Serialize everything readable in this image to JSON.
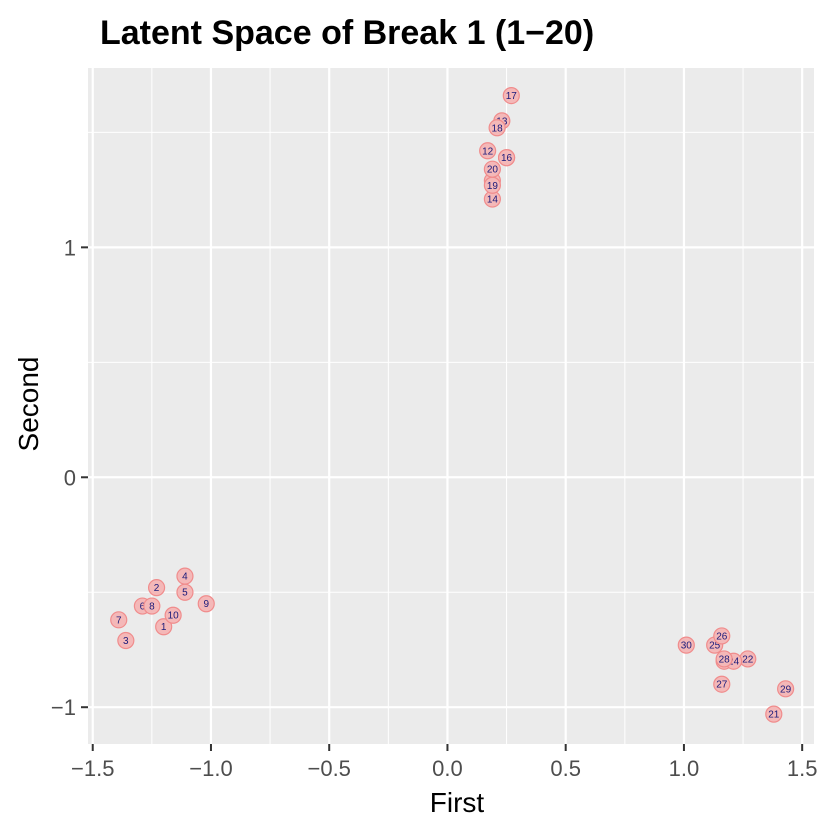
{
  "chart_data": {
    "type": "scatter",
    "title": "Latent Space of Break 1 (1−20)",
    "xlabel": "First",
    "ylabel": "Second",
    "xlim": [
      -1.52,
      1.55
    ],
    "ylim": [
      -1.16,
      1.78
    ],
    "x_ticks": [
      -1.5,
      -1.0,
      -0.5,
      0.0,
      0.5,
      1.0,
      1.5
    ],
    "x_tick_labels": [
      "−1.5",
      "−1.0",
      "−0.5",
      "0.0",
      "0.5",
      "1.0",
      "1.5"
    ],
    "y_ticks": [
      -1,
      0,
      1
    ],
    "y_tick_labels": [
      "−1",
      "0",
      "1"
    ],
    "grid": true,
    "colors": {
      "panel_background": "#ebebeb",
      "grid": "#ffffff",
      "point_fill": "#f4b8b8",
      "point_stroke": "#f08c8c",
      "label_text": "#1a1a7a"
    },
    "series": [
      {
        "points": [
          {
            "label": "1",
            "x": -1.2,
            "y": -0.65
          },
          {
            "label": "2",
            "x": -1.23,
            "y": -0.48
          },
          {
            "label": "3",
            "x": -1.36,
            "y": -0.71
          },
          {
            "label": "4",
            "x": -1.11,
            "y": -0.43
          },
          {
            "label": "5",
            "x": -1.11,
            "y": -0.5
          },
          {
            "label": "6",
            "x": -1.29,
            "y": -0.56
          },
          {
            "label": "7",
            "x": -1.39,
            "y": -0.62
          },
          {
            "label": "8",
            "x": -1.25,
            "y": -0.56
          },
          {
            "label": "9",
            "x": -1.02,
            "y": -0.55
          },
          {
            "label": "10",
            "x": -1.16,
            "y": -0.6
          },
          {
            "label": "11",
            "x": 0.19,
            "y": 1.29
          },
          {
            "label": "12",
            "x": 0.17,
            "y": 1.42
          },
          {
            "label": "13",
            "x": 0.23,
            "y": 1.55
          },
          {
            "label": "14",
            "x": 0.19,
            "y": 1.21
          },
          {
            "label": "15",
            "x": 0.25,
            "y": 1.39
          },
          {
            "label": "16",
            "x": 0.25,
            "y": 1.39
          },
          {
            "label": "17",
            "x": 0.27,
            "y": 1.66
          },
          {
            "label": "18",
            "x": 0.21,
            "y": 1.52
          },
          {
            "label": "19",
            "x": 0.19,
            "y": 1.27
          },
          {
            "label": "20",
            "x": 0.19,
            "y": 1.34
          },
          {
            "label": "21",
            "x": 1.38,
            "y": -1.03
          },
          {
            "label": "22",
            "x": 1.27,
            "y": -0.79
          },
          {
            "label": "23",
            "x": 1.17,
            "y": -0.8
          },
          {
            "label": "24",
            "x": 1.21,
            "y": -0.8
          },
          {
            "label": "25",
            "x": 1.13,
            "y": -0.73
          },
          {
            "label": "26",
            "x": 1.16,
            "y": -0.69
          },
          {
            "label": "27",
            "x": 1.16,
            "y": -0.9
          },
          {
            "label": "28",
            "x": 1.17,
            "y": -0.79
          },
          {
            "label": "29",
            "x": 1.43,
            "y": -0.92
          },
          {
            "label": "30",
            "x": 1.01,
            "y": -0.73
          }
        ]
      }
    ]
  }
}
